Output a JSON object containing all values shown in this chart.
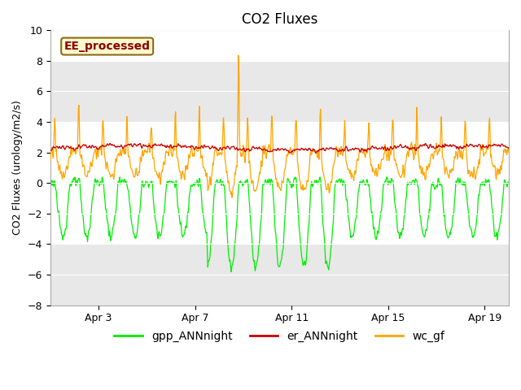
{
  "title": "CO2 Fluxes",
  "ylabel": "CO2 Fluxes (urology/m2/s)",
  "ylim": [
    -8,
    10
  ],
  "annotation_text": "EE_processed",
  "annotation_color": "#8B0000",
  "annotation_bg": "#FFFACD",
  "annotation_border": "#8B6914",
  "x_tick_labels": [
    "Apr 3",
    "Apr 7",
    "Apr 11",
    "Apr 15",
    "Apr 19"
  ],
  "x_tick_positions": [
    2,
    6,
    10,
    14,
    18
  ],
  "yticks": [
    -8,
    -6,
    -4,
    -2,
    0,
    2,
    4,
    6,
    8,
    10
  ],
  "band_color": "#E8E8E8",
  "band_ranges": [
    [
      -8,
      -4
    ],
    [
      4,
      8
    ]
  ],
  "legend_entries": [
    {
      "label": "gpp_ANNnight",
      "color": "#00EE00"
    },
    {
      "label": "er_ANNnight",
      "color": "#CC0000"
    },
    {
      "label": "wc_gf",
      "color": "#FFA500"
    }
  ],
  "title_fontsize": 12,
  "axis_fontsize": 9,
  "tick_fontsize": 9,
  "legend_fontsize": 10
}
